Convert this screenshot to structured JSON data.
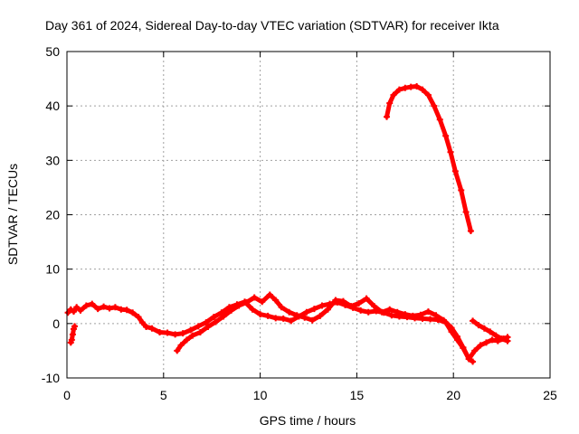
{
  "chart_data": {
    "type": "scatter",
    "title": "Day 361 of 2024, Sidereal Day-to-day VTEC variation (SDTVAR) for receiver Ikta",
    "xlabel": "GPS time / hours",
    "ylabel": "SDTVAR / TECUs",
    "xlim": [
      0,
      25
    ],
    "ylim": [
      -10,
      50
    ],
    "xticks": [
      "0",
      "5",
      "10",
      "15",
      "20",
      "25"
    ],
    "yticks": [
      "-10",
      "0",
      "10",
      "20",
      "30",
      "40",
      "50"
    ],
    "grid": true,
    "series": [
      {
        "name": "SDTVAR arc 1",
        "color": "#ff0000",
        "x": [
          0.05,
          0.2,
          0.35,
          0.5,
          0.7,
          1.0,
          1.3,
          1.6,
          1.9,
          2.2,
          2.5,
          2.8,
          3.1,
          3.4,
          3.7,
          3.9,
          4.1,
          4.4,
          4.8,
          5.2,
          5.6,
          6.0,
          6.4,
          6.8,
          7.2,
          7.6,
          8.0,
          8.4,
          8.8,
          9.2,
          9.6,
          10.0,
          10.4,
          10.8,
          11.2,
          11.6,
          12.0,
          12.4,
          12.8,
          13.2,
          13.6,
          14.0,
          14.4,
          14.8,
          15.2,
          15.6,
          16.0,
          16.4,
          16.8,
          17.2,
          17.6,
          18.0,
          18.4,
          18.8,
          19.2,
          19.6,
          19.9,
          20.2,
          20.5,
          20.8,
          21.1,
          21.4,
          21.7,
          22.0,
          22.3,
          22.6,
          22.8
        ],
        "y": [
          2.0,
          2.6,
          2.2,
          3.0,
          2.4,
          3.3,
          3.6,
          2.7,
          3.1,
          2.8,
          3.0,
          2.6,
          2.5,
          2.0,
          1.2,
          0.2,
          -0.6,
          -0.9,
          -1.6,
          -1.7,
          -2.0,
          -1.8,
          -1.2,
          -0.5,
          0.2,
          1.2,
          2.0,
          3.0,
          3.5,
          4.0,
          2.6,
          1.7,
          1.4,
          1.0,
          0.9,
          0.5,
          1.3,
          2.1,
          2.7,
          3.3,
          3.6,
          3.9,
          3.4,
          2.9,
          2.4,
          2.1,
          2.3,
          2.0,
          1.5,
          1.3,
          1.2,
          1.0,
          0.9,
          0.8,
          0.7,
          0.2,
          -1.5,
          -3.0,
          -4.5,
          -6.5,
          -5.0,
          -4.0,
          -3.5,
          -3.0,
          -3.2,
          -2.8,
          -2.5
        ]
      },
      {
        "name": "SDTVAR arc 2",
        "color": "#ff0000",
        "x": [
          16.55,
          16.7,
          16.9,
          17.2,
          17.5,
          17.8,
          18.1,
          18.4,
          18.7,
          19.0,
          19.3,
          19.6,
          19.85,
          20.1,
          20.4,
          20.65,
          20.9
        ],
        "y": [
          38.0,
          40.5,
          42.0,
          43.0,
          43.3,
          43.5,
          43.6,
          43.0,
          42.0,
          40.0,
          37.5,
          34.5,
          31.5,
          28.0,
          24.5,
          20.5,
          17.0
        ]
      },
      {
        "name": "SDTVAR arc 3",
        "color": "#ff0000",
        "x": [
          5.7,
          5.9,
          6.2,
          6.5,
          6.9,
          7.3,
          7.7,
          8.1,
          8.5,
          8.9,
          9.3,
          9.7,
          10.1,
          10.5,
          10.8,
          11.1,
          11.5,
          11.9,
          12.3,
          12.7,
          13.1,
          13.5,
          13.9,
          14.3,
          14.7,
          15.1,
          15.5,
          15.9,
          16.3,
          16.7,
          17.1,
          17.5,
          17.9,
          18.3,
          18.7,
          19.1,
          19.5,
          19.9,
          20.2,
          20.5,
          20.8,
          21.0
        ],
        "y": [
          -5.0,
          -4.0,
          -3.0,
          -2.2,
          -1.6,
          -0.6,
          0.3,
          1.3,
          2.4,
          3.3,
          3.9,
          4.8,
          4.0,
          5.3,
          4.3,
          3.0,
          2.1,
          1.5,
          1.1,
          0.6,
          1.4,
          2.6,
          4.3,
          4.1,
          3.2,
          3.7,
          4.6,
          3.2,
          2.1,
          2.6,
          2.1,
          1.7,
          1.4,
          1.6,
          2.2,
          1.5,
          0.6,
          -0.8,
          -2.4,
          -4.4,
          -6.5,
          -7.0
        ]
      },
      {
        "name": "SDTVAR arc 4",
        "color": "#ff0000",
        "x": [
          21.0,
          21.3,
          21.6,
          21.9,
          22.2,
          22.5,
          22.8
        ],
        "y": [
          0.5,
          -0.3,
          -0.9,
          -1.5,
          -2.2,
          -2.8,
          -3.2
        ]
      },
      {
        "name": "SDTVAR arc 5",
        "color": "#ff0000",
        "x": [
          0.2,
          0.25,
          0.3,
          0.35,
          0.4
        ],
        "y": [
          -3.5,
          -3.0,
          -2.0,
          -1.0,
          -0.5
        ]
      }
    ]
  }
}
